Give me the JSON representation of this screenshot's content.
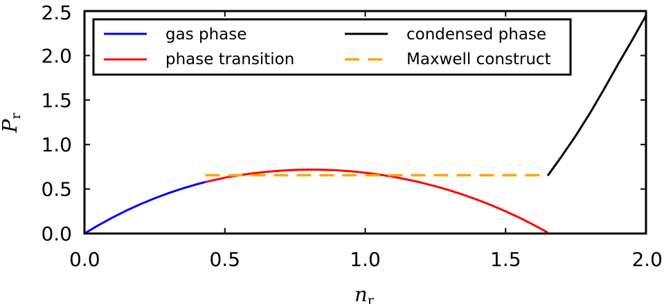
{
  "chart_data": {
    "type": "line",
    "title": "",
    "xlabel": {
      "main": "n",
      "sub": "r"
    },
    "ylabel": {
      "main": "P",
      "sub": "r"
    },
    "xlim": [
      0.0,
      2.0
    ],
    "ylim": [
      0.0,
      2.5
    ],
    "xticks": [
      "0.0",
      "0.5",
      "1.0",
      "1.5",
      "2.0"
    ],
    "yticks": [
      "0.0",
      "0.5",
      "1.0",
      "1.5",
      "2.0",
      "2.5"
    ],
    "grid": false,
    "legend_position": "top-left",
    "series": [
      {
        "name": "gas phase",
        "color": "#0000ff",
        "style": "solid",
        "x": [
          0.0,
          0.05,
          0.1,
          0.15,
          0.2,
          0.25,
          0.3,
          0.35,
          0.4,
          0.43
        ],
        "y": [
          0.0,
          0.0938,
          0.18,
          0.2588,
          0.3307,
          0.3958,
          0.4545,
          0.5069,
          0.5532,
          0.5784
        ]
      },
      {
        "name": "phase transition",
        "color": "#ff0000",
        "style": "solid",
        "x": [
          0.43,
          0.5,
          0.55,
          0.6,
          0.65,
          0.7,
          0.75,
          0.8,
          0.85,
          0.9,
          0.95,
          1.0,
          1.05,
          1.1,
          1.15,
          1.2,
          1.25,
          1.3,
          1.35,
          1.4,
          1.45,
          1.5,
          1.55,
          1.6,
          1.65
        ],
        "y": [
          0.5784,
          0.6273,
          0.6544,
          0.6766,
          0.6941,
          0.7068,
          0.7148,
          0.718,
          0.7165,
          0.7102,
          0.6991,
          0.6832,
          0.6625,
          0.6371,
          0.6067,
          0.5714,
          0.5311,
          0.4856,
          0.4349,
          0.3788,
          0.3171,
          0.2497,
          0.1763,
          0.0968,
          0.0109
        ]
      },
      {
        "name": "condensed phase",
        "color": "#000000",
        "style": "solid",
        "x": [
          1.65,
          1.7,
          1.75,
          1.8,
          1.85,
          1.9,
          1.95,
          2.0
        ],
        "y": [
          0.65,
          0.87,
          1.1,
          1.35,
          1.62,
          1.9,
          2.17,
          2.45
        ]
      },
      {
        "name": "Maxwell construct",
        "color": "#ffa500",
        "style": "dashed",
        "x": [
          0.43,
          1.65
        ],
        "y": [
          0.655,
          0.655
        ]
      }
    ]
  }
}
